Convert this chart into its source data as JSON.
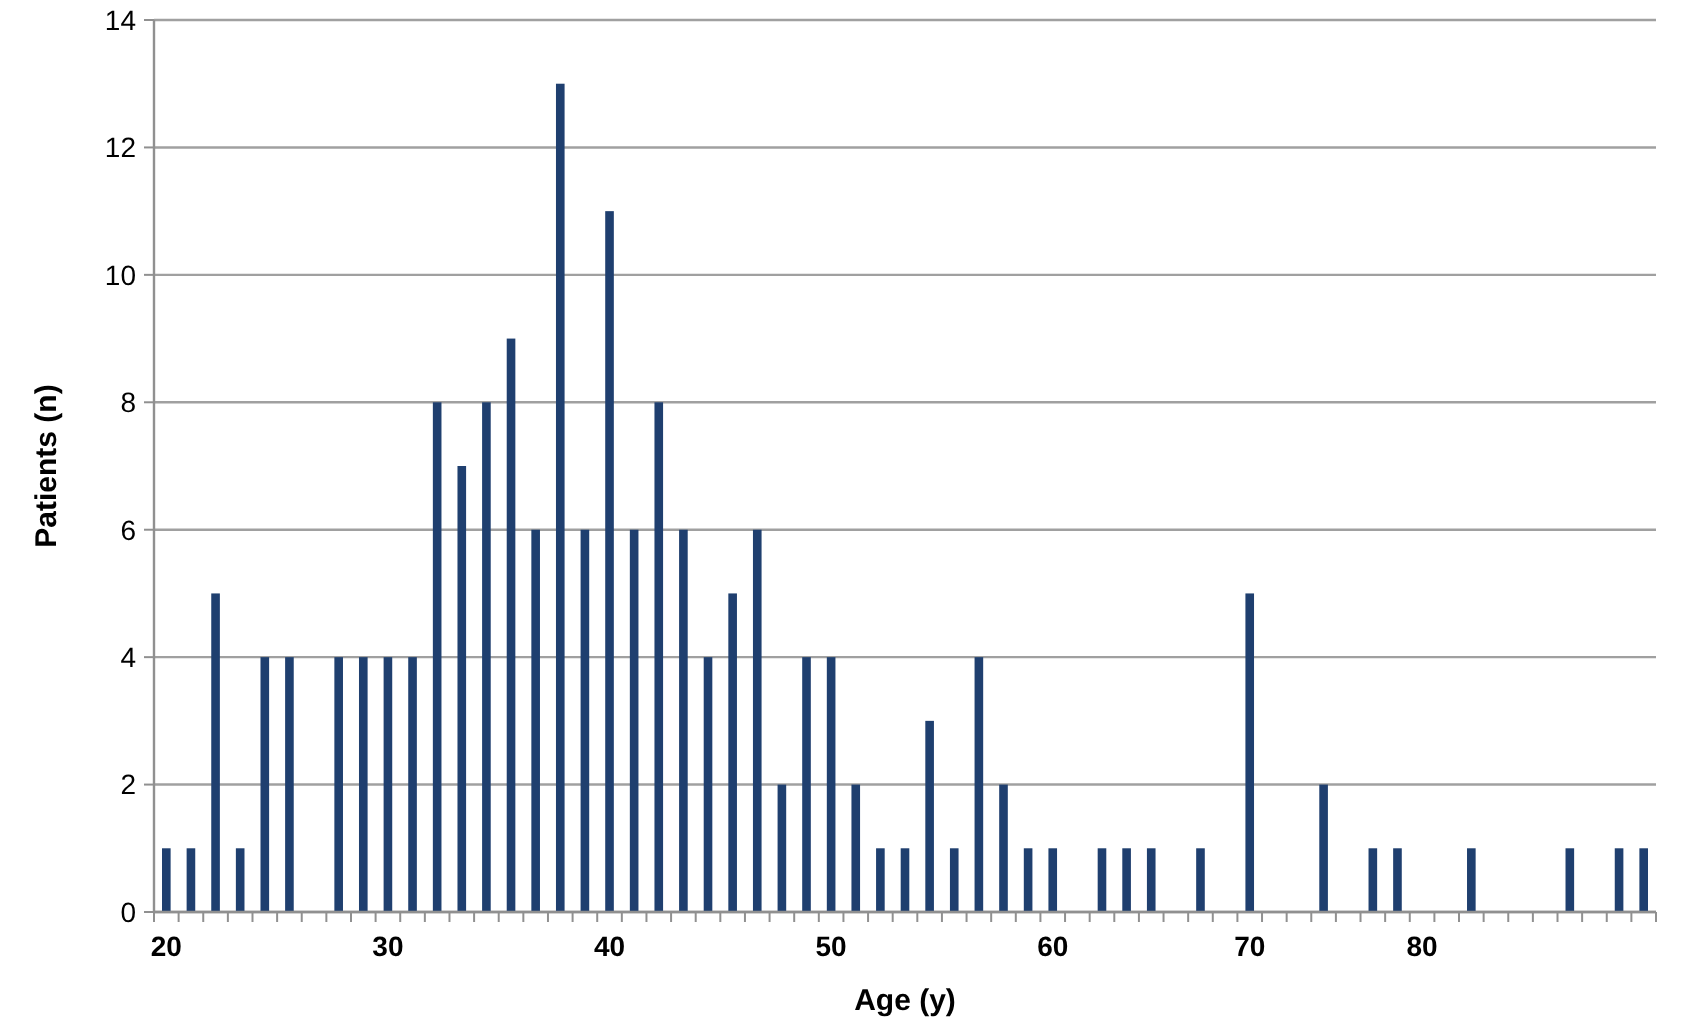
{
  "chart_data": {
    "type": "bar",
    "xlabel": "Age (y)",
    "ylabel": "Patients (n)",
    "categories": [
      "20",
      null,
      null,
      null,
      null,
      null,
      null,
      null,
      null,
      "30",
      null,
      null,
      null,
      null,
      null,
      null,
      null,
      null,
      "40",
      null,
      null,
      null,
      null,
      null,
      null,
      null,
      null,
      "50",
      null,
      null,
      null,
      null,
      null,
      null,
      null,
      null,
      "60",
      null,
      null,
      null,
      null,
      null,
      null,
      null,
      "70",
      null,
      null,
      null,
      null,
      null,
      null,
      "80",
      null,
      null,
      null,
      null,
      null,
      null,
      null,
      null,
      null
    ],
    "values": [
      1,
      1,
      5,
      1,
      4,
      4,
      0,
      4,
      4,
      4,
      4,
      8,
      7,
      8,
      9,
      6,
      13,
      6,
      11,
      6,
      8,
      6,
      4,
      5,
      6,
      2,
      4,
      4,
      2,
      1,
      1,
      3,
      1,
      4,
      2,
      1,
      1,
      0,
      1,
      1,
      1,
      0,
      1,
      0,
      5,
      0,
      0,
      2,
      0,
      1,
      1,
      0,
      0,
      1,
      0,
      0,
      0,
      1,
      0,
      1,
      1
    ],
    "color": "#1f3f6f",
    "ylim": [
      0,
      14
    ],
    "yticks": [
      0,
      2,
      4,
      6,
      8,
      10,
      12,
      14
    ],
    "grid": "y"
  }
}
